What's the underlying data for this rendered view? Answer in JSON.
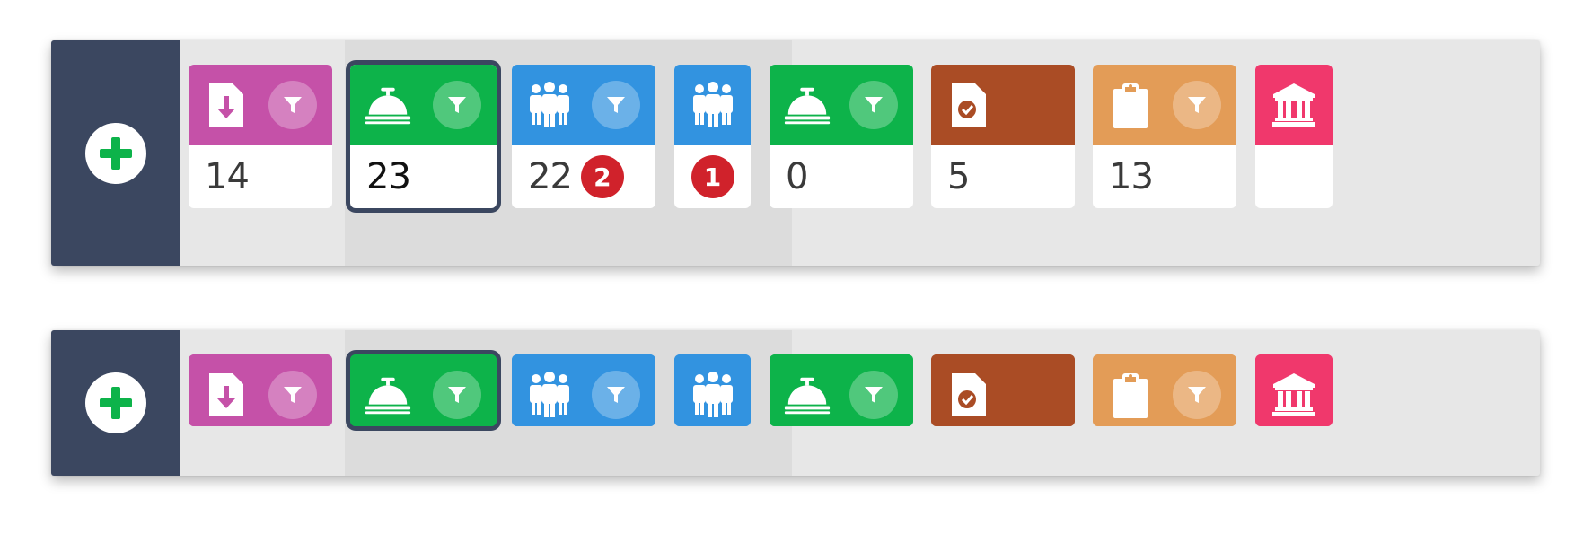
{
  "colors": {
    "sidebar": "#3b4760",
    "add_icon": "#0db34a",
    "badge": "#d0222b"
  },
  "panels": [
    {
      "name": "expanded",
      "add_button_icon": "plus-circle-icon",
      "tiles": [
        {
          "icon": "file-download-icon",
          "color": "#c551a8",
          "filter": true,
          "count": "14",
          "badge": ""
        },
        {
          "icon": "service-bell-icon",
          "color": "#0db34a",
          "filter": true,
          "count": "23",
          "badge": "",
          "selected": true
        },
        {
          "icon": "group-icon",
          "color": "#3293e0",
          "filter": true,
          "count": "22",
          "badge": "2"
        },
        {
          "icon": "group-icon",
          "color": "#3293e0",
          "filter": false,
          "count": "",
          "badge": "1"
        },
        {
          "icon": "service-bell-icon",
          "color": "#0db34a",
          "filter": true,
          "count": "0",
          "badge": ""
        },
        {
          "icon": "file-check-icon",
          "color": "#aa4c25",
          "filter": false,
          "count": "5",
          "badge": ""
        },
        {
          "icon": "clipboard-icon",
          "color": "#e39c57",
          "filter": true,
          "count": "13",
          "badge": ""
        },
        {
          "icon": "bank-icon",
          "color": "#f0386c",
          "filter": false,
          "count": "",
          "badge": ""
        }
      ]
    },
    {
      "name": "compact",
      "add_button_icon": "plus-circle-icon",
      "tiles": [
        {
          "icon": "file-download-icon",
          "color": "#c551a8",
          "filter": true
        },
        {
          "icon": "service-bell-icon",
          "color": "#0db34a",
          "filter": true,
          "selected": true
        },
        {
          "icon": "group-icon",
          "color": "#3293e0",
          "filter": true
        },
        {
          "icon": "group-icon",
          "color": "#3293e0",
          "filter": false
        },
        {
          "icon": "service-bell-icon",
          "color": "#0db34a",
          "filter": true
        },
        {
          "icon": "file-check-icon",
          "color": "#aa4c25",
          "filter": false
        },
        {
          "icon": "clipboard-icon",
          "color": "#e39c57",
          "filter": true
        },
        {
          "icon": "bank-icon",
          "color": "#f0386c",
          "filter": false
        }
      ]
    }
  ]
}
